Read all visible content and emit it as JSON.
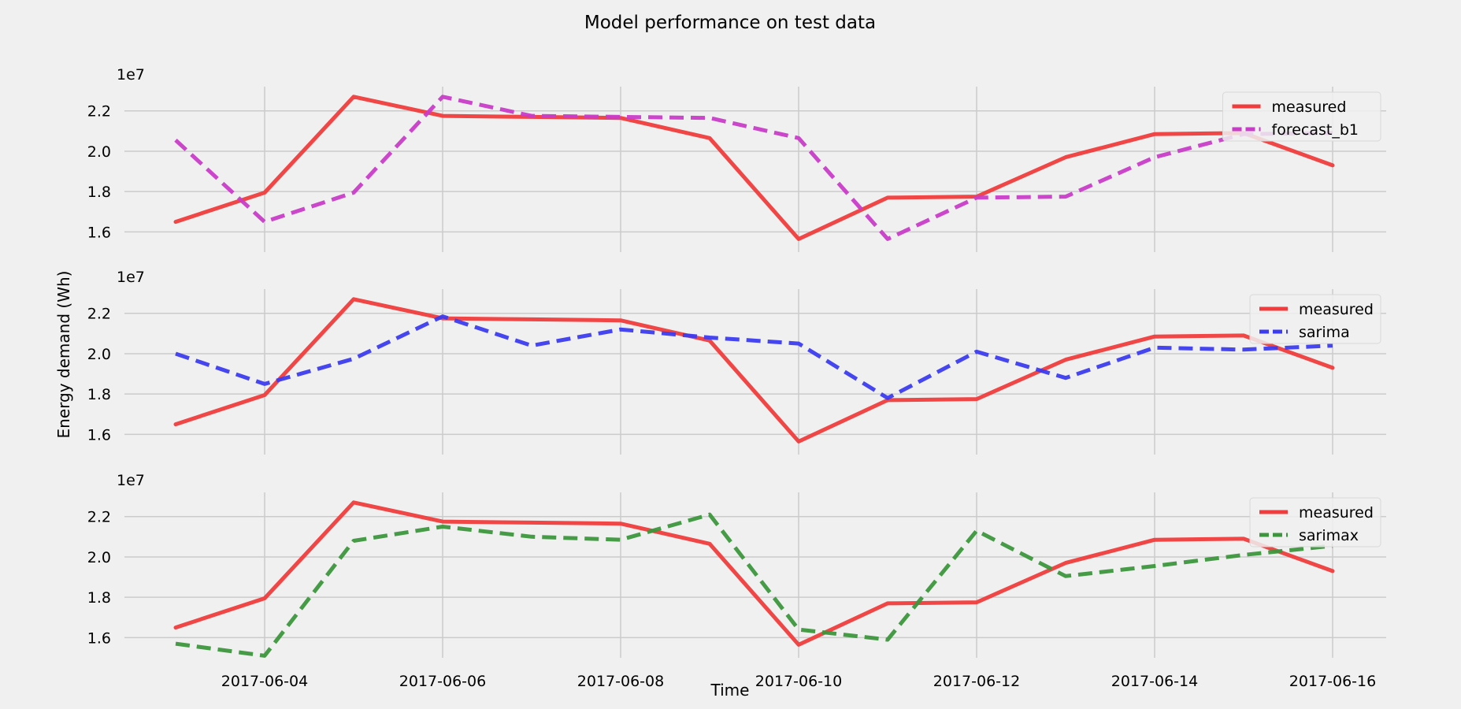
{
  "chart_data": {
    "type": "line",
    "title": "Model performance on test data",
    "xlabel": "Time",
    "ylabel": "Energy demand (Wh)",
    "x": [
      "2017-06-03",
      "2017-06-04",
      "2017-06-05",
      "2017-06-06",
      "2017-06-07",
      "2017-06-08",
      "2017-06-09",
      "2017-06-10",
      "2017-06-11",
      "2017-06-12",
      "2017-06-13",
      "2017-06-14",
      "2017-06-15",
      "2017-06-16"
    ],
    "x_ticks": [
      "2017-06-04",
      "2017-06-06",
      "2017-06-08",
      "2017-06-10",
      "2017-06-12",
      "2017-06-14",
      "2017-06-16"
    ],
    "y_ticks": [
      1.6,
      1.8,
      2.0,
      2.2
    ],
    "y_tick_labels": [
      "1.6",
      "1.8",
      "2.0",
      "2.2"
    ],
    "y_offset_label": "1e7",
    "ylim": [
      15000000,
      23200000
    ],
    "grid": true,
    "legend_position": "top-right",
    "subplots": [
      {
        "legend_position": "top-right",
        "series": [
          {
            "name": "measured",
            "color": "#f03c3c",
            "style": "solid",
            "values": [
              16500000,
              17950000,
              22700000,
              21750000,
              21700000,
              21650000,
              20650000,
              15650000,
              17700000,
              17750000,
              19700000,
              20850000,
              20900000,
              19300000
            ]
          },
          {
            "name": "forecast_b1",
            "color": "#c83cc8",
            "style": "dashed",
            "values": [
              20550000,
              16500000,
              17950000,
              22700000,
              21750000,
              21700000,
              21650000,
              20650000,
              15650000,
              17700000,
              17750000,
              19700000,
              20850000,
              20900000
            ]
          }
        ]
      },
      {
        "legend_position": "top-right",
        "series": [
          {
            "name": "measured",
            "color": "#f03c3c",
            "style": "solid",
            "values": [
              16500000,
              17950000,
              22700000,
              21750000,
              21700000,
              21650000,
              20650000,
              15650000,
              17700000,
              17750000,
              19700000,
              20850000,
              20900000,
              19300000
            ]
          },
          {
            "name": "sarima",
            "color": "#3c3cf0",
            "style": "dashed",
            "values": [
              20000000,
              18500000,
              19750000,
              21850000,
              20400000,
              21200000,
              20800000,
              20500000,
              17800000,
              20100000,
              18800000,
              20300000,
              20200000,
              20400000
            ]
          }
        ]
      },
      {
        "legend_position": "top-right",
        "series": [
          {
            "name": "measured",
            "color": "#f03c3c",
            "style": "solid",
            "values": [
              16500000,
              17950000,
              22700000,
              21750000,
              21700000,
              21650000,
              20650000,
              15650000,
              17700000,
              17750000,
              19700000,
              20850000,
              20900000,
              19300000
            ]
          },
          {
            "name": "sarimax",
            "color": "#3c963c",
            "style": "dashed",
            "values": [
              15700000,
              15100000,
              20800000,
              21500000,
              21000000,
              20850000,
              22100000,
              16400000,
              15900000,
              21300000,
              19050000,
              19550000,
              20100000,
              20550000
            ]
          }
        ]
      }
    ]
  }
}
